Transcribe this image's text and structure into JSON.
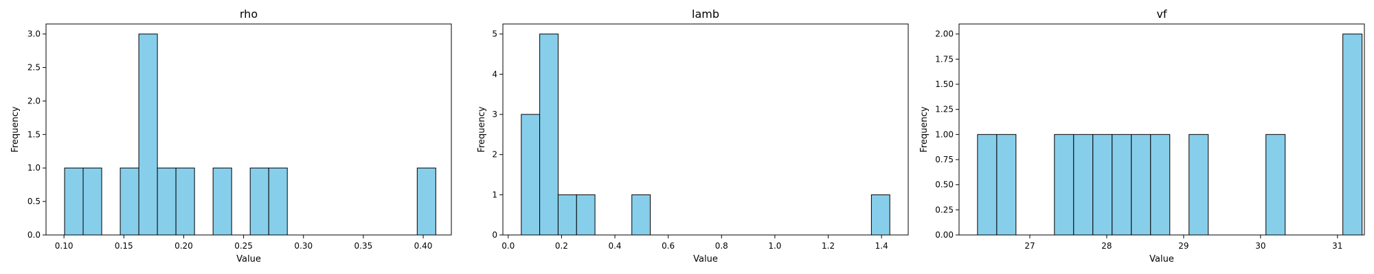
{
  "chart_data": [
    {
      "type": "bar",
      "title": "rho",
      "xlabel": "Value",
      "ylabel": "Frequency",
      "xlim": [
        0.085,
        0.4235
      ],
      "ylim": [
        0,
        3.15
      ],
      "xticks": [
        {
          "value": 0.1,
          "label": "0.10"
        },
        {
          "value": 0.15,
          "label": "0.15"
        },
        {
          "value": 0.2,
          "label": "0.20"
        },
        {
          "value": 0.25,
          "label": "0.25"
        },
        {
          "value": 0.3,
          "label": "0.30"
        },
        {
          "value": 0.35,
          "label": "0.35"
        },
        {
          "value": 0.4,
          "label": "0.40"
        }
      ],
      "yticks": [
        {
          "value": 0.0,
          "label": "0.0"
        },
        {
          "value": 0.5,
          "label": "0.5"
        },
        {
          "value": 1.0,
          "label": "1.0"
        },
        {
          "value": 1.5,
          "label": "1.5"
        },
        {
          "value": 2.0,
          "label": "2.0"
        },
        {
          "value": 2.5,
          "label": "2.5"
        },
        {
          "value": 3.0,
          "label": "3.0"
        }
      ],
      "bin_edges": [
        0.1005,
        0.116,
        0.1315,
        0.147,
        0.1625,
        0.178,
        0.1935,
        0.209,
        0.2245,
        0.24,
        0.2555,
        0.271,
        0.2865,
        0.302,
        0.3175,
        0.333,
        0.3485,
        0.364,
        0.3795,
        0.395,
        0.4105
      ],
      "counts": [
        1,
        1,
        0,
        1,
        3,
        1,
        1,
        0,
        1,
        0,
        1,
        1,
        0,
        0,
        0,
        0,
        0,
        0,
        0,
        1
      ]
    },
    {
      "type": "bar",
      "title": "lamb",
      "xlabel": "Value",
      "ylabel": "Frequency",
      "xlim": [
        -0.02,
        1.5
      ],
      "ylim": [
        0,
        5.25
      ],
      "xticks": [
        {
          "value": 0.0,
          "label": "0.0"
        },
        {
          "value": 0.2,
          "label": "0.2"
        },
        {
          "value": 0.4,
          "label": "0.4"
        },
        {
          "value": 0.6,
          "label": "0.6"
        },
        {
          "value": 0.8,
          "label": "0.8"
        },
        {
          "value": 1.0,
          "label": "1.0"
        },
        {
          "value": 1.2,
          "label": "1.2"
        },
        {
          "value": 1.4,
          "label": "1.4"
        }
      ],
      "yticks": [
        {
          "value": 0,
          "label": "0"
        },
        {
          "value": 1,
          "label": "1"
        },
        {
          "value": 2,
          "label": "2"
        },
        {
          "value": 3,
          "label": "3"
        },
        {
          "value": 4,
          "label": "4"
        },
        {
          "value": 5,
          "label": "5"
        }
      ],
      "bin_edges": [
        0.049,
        0.1181,
        0.1872,
        0.2563,
        0.3254,
        0.3945,
        0.4636,
        0.5327,
        0.6018,
        0.6709,
        0.74,
        0.8091,
        0.8782,
        0.9473,
        1.0164,
        1.0855,
        1.1546,
        1.2237,
        1.2928,
        1.3619,
        1.431
      ],
      "counts": [
        3,
        5,
        1,
        1,
        0,
        0,
        1,
        0,
        0,
        0,
        0,
        0,
        0,
        0,
        0,
        0,
        0,
        0,
        0,
        1
      ]
    },
    {
      "type": "bar",
      "title": "vf",
      "xlabel": "Value",
      "ylabel": "Frequency",
      "xlim": [
        26.08,
        31.35
      ],
      "ylim": [
        0,
        2.1
      ],
      "xticks": [
        {
          "value": 27,
          "label": "27"
        },
        {
          "value": 28,
          "label": "28"
        },
        {
          "value": 29,
          "label": "29"
        },
        {
          "value": 30,
          "label": "30"
        },
        {
          "value": 31,
          "label": "31"
        }
      ],
      "yticks": [
        {
          "value": 0.0,
          "label": "0.00"
        },
        {
          "value": 0.25,
          "label": "0.25"
        },
        {
          "value": 0.5,
          "label": "0.50"
        },
        {
          "value": 0.75,
          "label": "0.75"
        },
        {
          "value": 1.0,
          "label": "1.00"
        },
        {
          "value": 1.25,
          "label": "1.25"
        },
        {
          "value": 1.5,
          "label": "1.50"
        },
        {
          "value": 1.75,
          "label": "1.75"
        },
        {
          "value": 2.0,
          "label": "2.00"
        }
      ],
      "bin_edges": [
        26.32,
        26.57,
        26.82,
        27.07,
        27.32,
        27.57,
        27.82,
        28.07,
        28.32,
        28.57,
        28.82,
        29.07,
        29.32,
        29.57,
        29.82,
        30.07,
        30.32,
        30.57,
        30.82,
        31.07,
        31.32
      ],
      "counts": [
        1,
        1,
        0,
        0,
        1,
        1,
        1,
        1,
        1,
        1,
        0,
        1,
        0,
        0,
        0,
        1,
        0,
        0,
        0,
        2
      ]
    }
  ],
  "colors": {
    "bar_fill": "#87ceeb",
    "bar_edge": "#000000",
    "axes": "#000000"
  },
  "grid": false,
  "legend": "none"
}
